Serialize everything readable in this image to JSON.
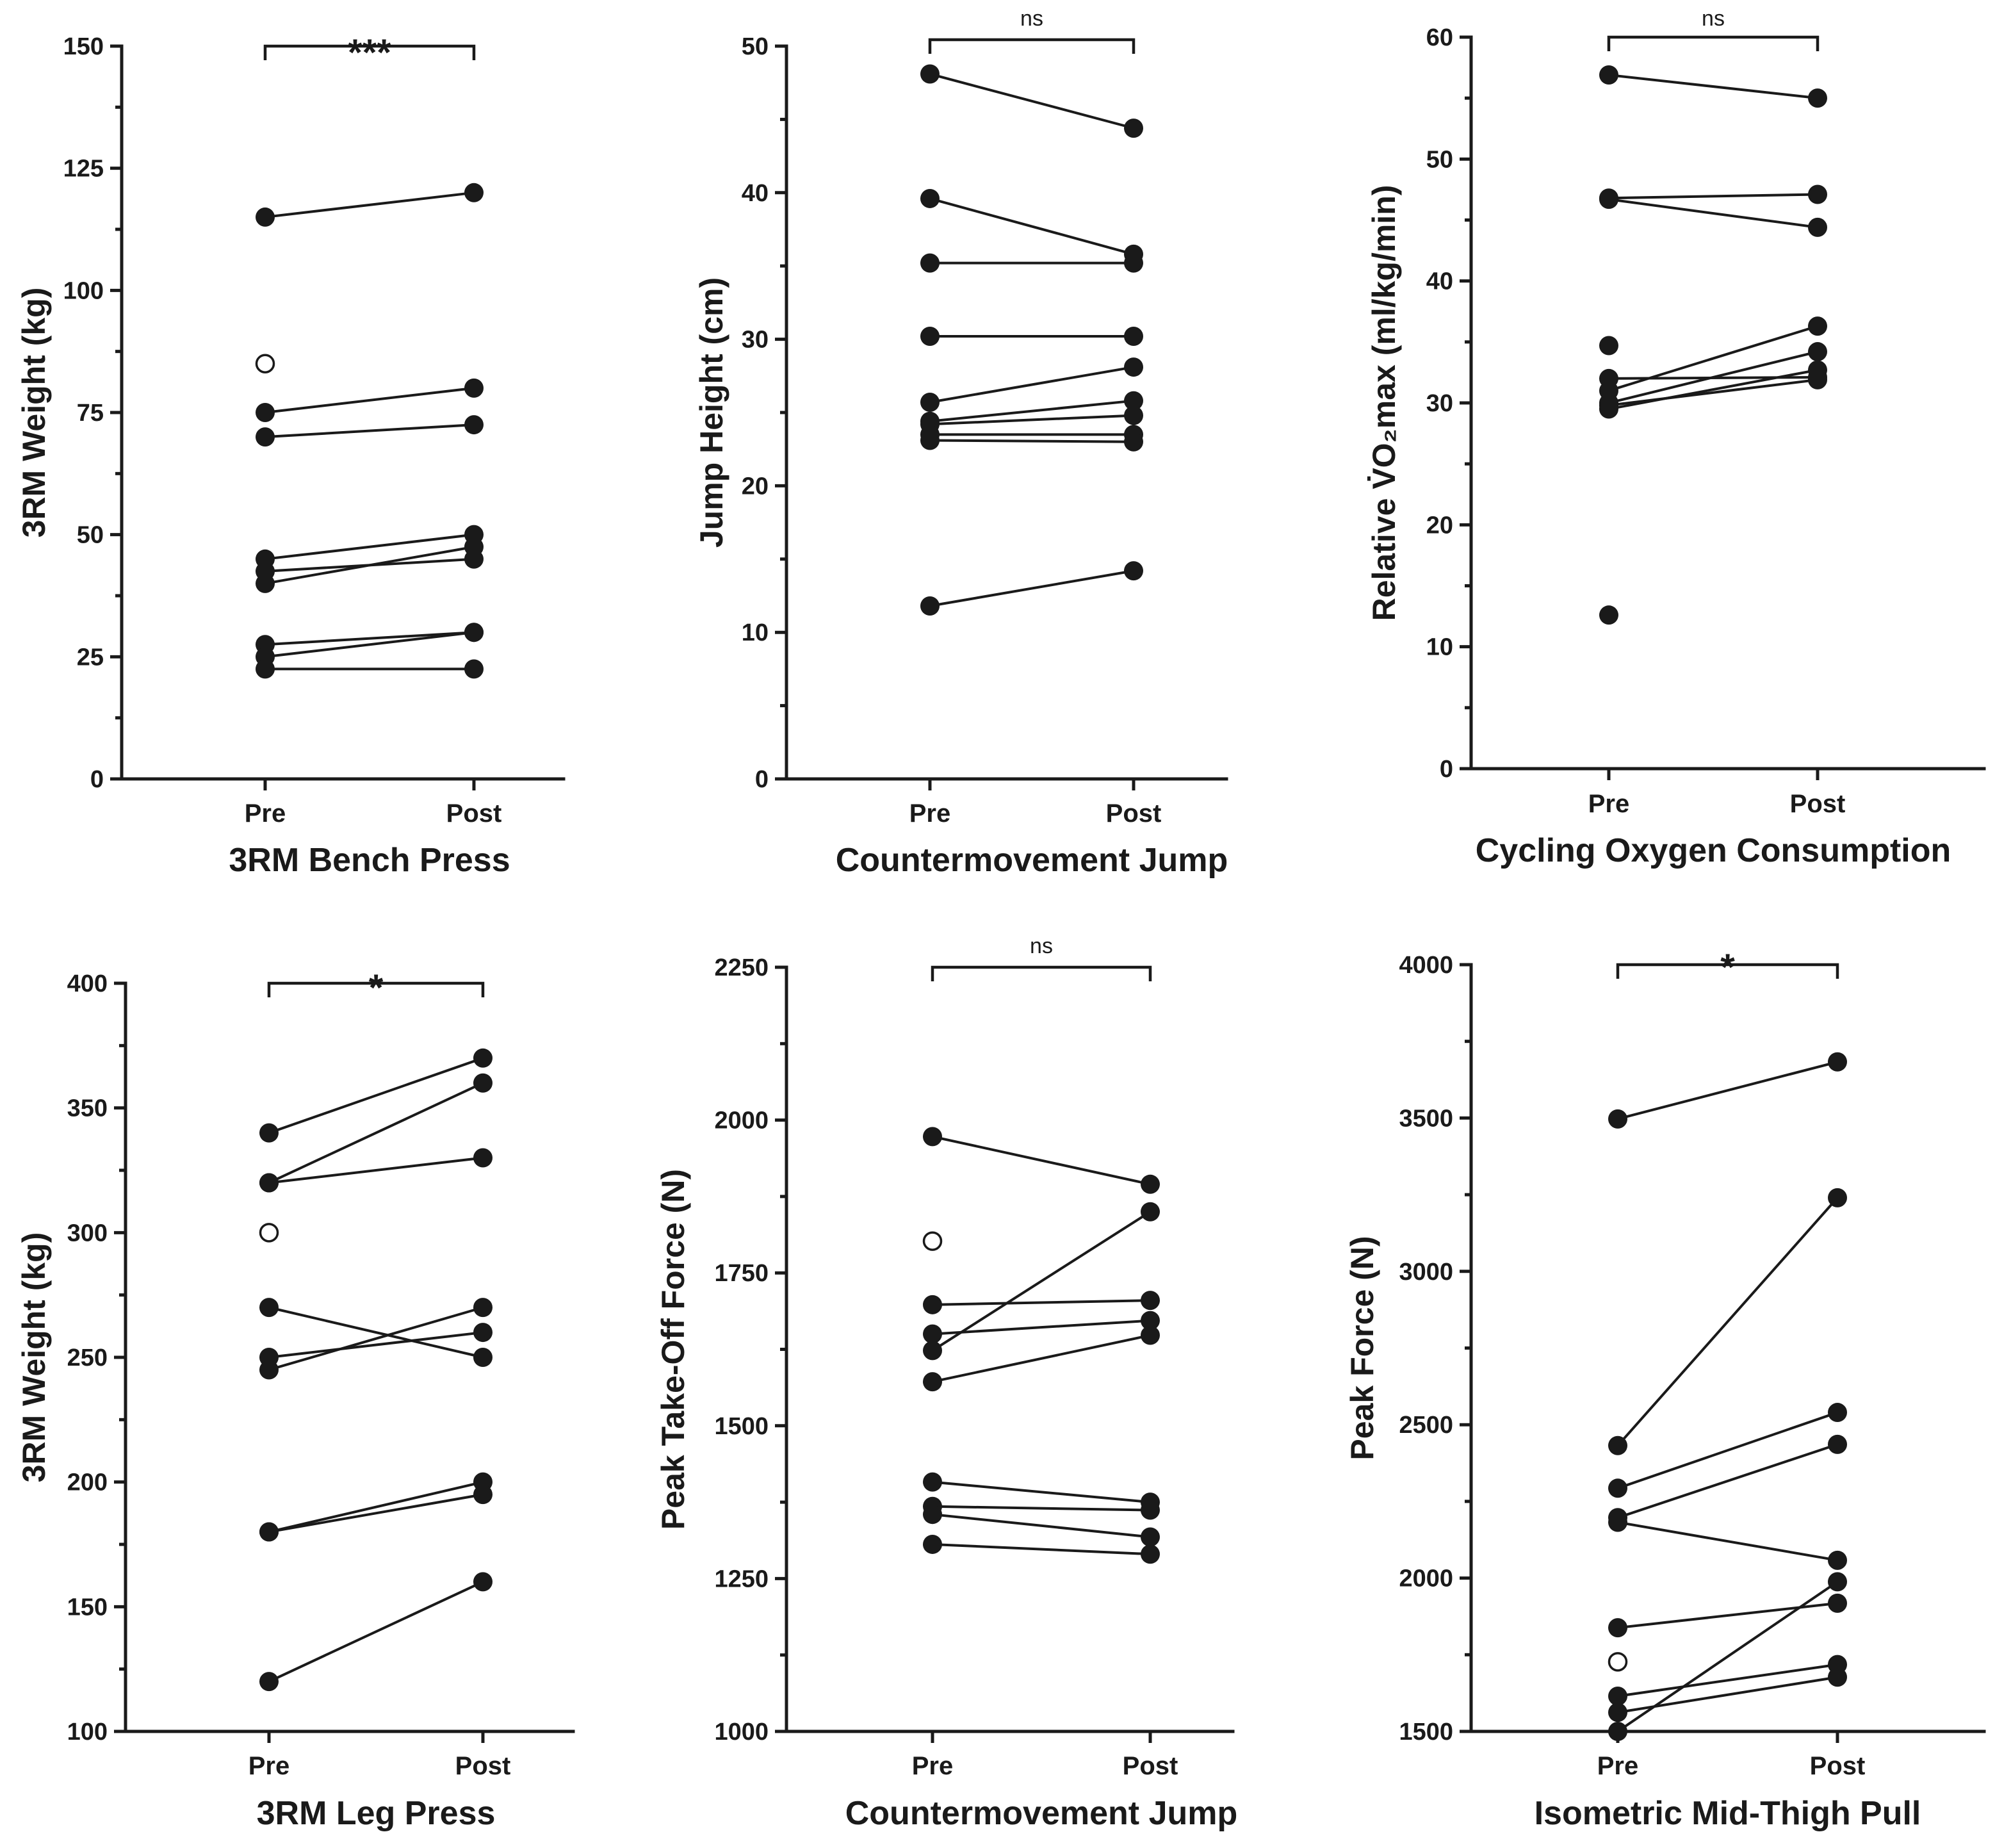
{
  "figure": {
    "background": "#ffffff",
    "ink": "#1a1a1a"
  },
  "chart_data": [
    {
      "type": "scatter",
      "subtype": "paired-pre-post",
      "title": "3RM Bench Press",
      "ylabel": "3RM Weight (kg)",
      "categories": [
        "Pre",
        "Post"
      ],
      "ylim": [
        0,
        150
      ],
      "yticks": [
        0,
        25,
        50,
        75,
        100,
        125,
        150
      ],
      "significance": "***",
      "pairs": [
        [
          115,
          120
        ],
        [
          75,
          80
        ],
        [
          70,
          72.5
        ],
        [
          45,
          50
        ],
        [
          42.5,
          45
        ],
        [
          40,
          47.5
        ],
        [
          27.5,
          30
        ],
        [
          25,
          30
        ],
        [
          22.5,
          22.5
        ]
      ],
      "unpaired": [
        {
          "group": "Pre",
          "value": 85,
          "marker": "open"
        }
      ]
    },
    {
      "type": "scatter",
      "subtype": "paired-pre-post",
      "title": "Countermovement Jump",
      "ylabel": "Jump Height (cm)",
      "categories": [
        "Pre",
        "Post"
      ],
      "ylim": [
        0,
        50
      ],
      "yticks": [
        0,
        10,
        20,
        30,
        40,
        50
      ],
      "significance": "ns",
      "pairs": [
        [
          48.1,
          44.4
        ],
        [
          39.6,
          35.8
        ],
        [
          35.2,
          35.2
        ],
        [
          30.2,
          30.2
        ],
        [
          25.7,
          28.1
        ],
        [
          24.4,
          25.8
        ],
        [
          24.2,
          24.8
        ],
        [
          23.5,
          23.5
        ],
        [
          23.1,
          23.0
        ],
        [
          11.8,
          14.2
        ]
      ],
      "unpaired": []
    },
    {
      "type": "scatter",
      "subtype": "paired-pre-post",
      "title": "Cycling Oxygen Consumption",
      "ylabel": "Relative V̇O₂max (ml/kg/min)",
      "categories": [
        "Pre",
        "Post"
      ],
      "ylim": [
        0,
        60
      ],
      "yticks": [
        0,
        10,
        20,
        30,
        40,
        50,
        60
      ],
      "significance": "ns",
      "pairs": [
        [
          56.9,
          55.0
        ],
        [
          46.8,
          47.1
        ],
        [
          46.7,
          44.4
        ],
        [
          32.0,
          32.1
        ],
        [
          31.0,
          36.3
        ],
        [
          30.0,
          34.2
        ],
        [
          29.5,
          32.7
        ],
        [
          29.8,
          31.9
        ]
      ],
      "unpaired": [
        {
          "group": "Pre",
          "value": 34.7,
          "marker": "filled"
        },
        {
          "group": "Pre",
          "value": 12.6,
          "marker": "filled"
        }
      ]
    },
    {
      "type": "scatter",
      "subtype": "paired-pre-post",
      "title": "3RM Leg Press",
      "ylabel": "3RM Weight (kg)",
      "categories": [
        "Pre",
        "Post"
      ],
      "ylim": [
        100,
        400
      ],
      "yticks": [
        100,
        150,
        200,
        250,
        300,
        350,
        400
      ],
      "significance": "*",
      "pairs": [
        [
          340,
          370
        ],
        [
          320,
          360
        ],
        [
          320,
          330
        ],
        [
          270,
          250
        ],
        [
          250,
          260
        ],
        [
          245,
          270
        ],
        [
          180,
          200
        ],
        [
          180,
          195
        ],
        [
          120,
          160
        ]
      ],
      "unpaired": [
        {
          "group": "Pre",
          "value": 300,
          "marker": "open"
        }
      ]
    },
    {
      "type": "scatter",
      "subtype": "paired-pre-post",
      "title": "Countermovement Jump",
      "ylabel": "Peak Take-Off Force (N)",
      "categories": [
        "Pre",
        "Post"
      ],
      "ylim": [
        1000,
        2250
      ],
      "yticks": [
        1000,
        1250,
        1500,
        1750,
        2000,
        2250
      ],
      "significance": "ns",
      "pairs": [
        [
          1973,
          1895
        ],
        [
          1698,
          1705
        ],
        [
          1650,
          1672
        ],
        [
          1623,
          1850
        ],
        [
          1572,
          1648
        ],
        [
          1408,
          1375
        ],
        [
          1368,
          1362
        ],
        [
          1355,
          1318
        ],
        [
          1306,
          1290
        ]
      ],
      "unpaired": [
        {
          "group": "Pre",
          "value": 1802,
          "marker": "open"
        }
      ]
    },
    {
      "type": "scatter",
      "subtype": "paired-pre-post",
      "title": "Isometric Mid-Thigh Pull",
      "ylabel": "Peak Force (N)",
      "categories": [
        "Pre",
        "Post"
      ],
      "ylim": [
        1500,
        4000
      ],
      "yticks": [
        1500,
        2000,
        2500,
        3000,
        3500,
        4000
      ],
      "significance": "*",
      "pairs": [
        [
          3497,
          3683
        ],
        [
          2432,
          3240
        ],
        [
          2293,
          2540
        ],
        [
          2197,
          2436
        ],
        [
          2182,
          2058
        ],
        [
          1838,
          1918
        ],
        [
          1615,
          1718
        ],
        [
          1562,
          1677
        ],
        [
          1500,
          1988
        ]
      ],
      "unpaired": [
        {
          "group": "Pre",
          "value": 1727,
          "marker": "open"
        }
      ]
    }
  ]
}
